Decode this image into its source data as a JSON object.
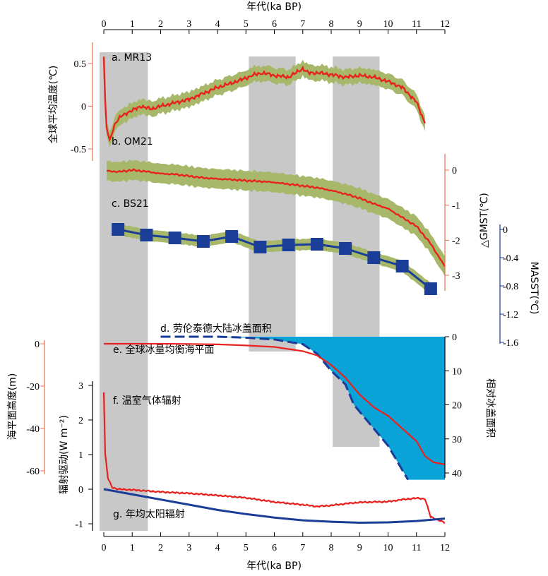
{
  "chart_data": {
    "type": "line",
    "x_axis": {
      "label": "年代(ka BP)",
      "range": [
        0,
        12
      ],
      "ticks": [
        "0",
        "1",
        "2",
        "3",
        "4",
        "5",
        "6",
        "7",
        "8",
        "9",
        "10",
        "11",
        "12"
      ]
    },
    "shading_ka": [
      [
        0,
        1.55
      ],
      [
        5.25,
        6.9
      ],
      [
        8.2,
        9.85
      ]
    ],
    "colors": {
      "red": "#e8221e",
      "blue": "#1a3d98",
      "band": "#a8b86a",
      "gray": "#c8c8c8",
      "ice": "#0aa3d8",
      "axis_orange": "#e8704a"
    },
    "panels": [
      {
        "id": "a",
        "label": "a. MR13",
        "axis": {
          "side": "left",
          "title": "全球平均温度(℃)",
          "ticks": [
            "0.5",
            "0",
            "-0.5"
          ],
          "tick_values": [
            0.5,
            0,
            -0.5
          ],
          "range": [
            -0.65,
            0.62
          ]
        },
        "series_mean": [
          [
            0,
            0.58
          ],
          [
            0.05,
            0.05
          ],
          [
            0.1,
            -0.25
          ],
          [
            0.2,
            -0.4
          ],
          [
            0.3,
            -0.3
          ],
          [
            0.4,
            -0.2
          ],
          [
            0.6,
            -0.12
          ],
          [
            0.8,
            -0.08
          ],
          [
            1,
            -0.05
          ],
          [
            1.3,
            0.0
          ],
          [
            1.5,
            -0.02
          ],
          [
            1.7,
            -0.03
          ],
          [
            2,
            0.0
          ],
          [
            2.5,
            0.04
          ],
          [
            3,
            0.08
          ],
          [
            3.5,
            0.15
          ],
          [
            4,
            0.22
          ],
          [
            4.5,
            0.27
          ],
          [
            5,
            0.33
          ],
          [
            5.3,
            0.37
          ],
          [
            5.6,
            0.39
          ],
          [
            6,
            0.36
          ],
          [
            6.5,
            0.34
          ],
          [
            7,
            0.44
          ],
          [
            7.2,
            0.39
          ],
          [
            7.6,
            0.39
          ],
          [
            8,
            0.37
          ],
          [
            8.5,
            0.34
          ],
          [
            9,
            0.36
          ],
          [
            9.5,
            0.34
          ],
          [
            10,
            0.29
          ],
          [
            10.5,
            0.22
          ],
          [
            11,
            0.05
          ],
          [
            11.3,
            -0.2
          ]
        ],
        "band_halfwidth": 0.09
      },
      {
        "id": "b",
        "label": "b. OM21",
        "axis": {
          "side": "right",
          "title": "△GMST(℃)",
          "ticks": [
            "0",
            "-1",
            "-2",
            "-3"
          ],
          "tick_values": [
            0,
            -1,
            -2,
            -3
          ],
          "range": [
            -3.4,
            0.2
          ]
        },
        "series_mean": [
          [
            0.1,
            -0.02
          ],
          [
            0.5,
            -0.05
          ],
          [
            1,
            0.0
          ],
          [
            1.5,
            -0.04
          ],
          [
            2,
            -0.1
          ],
          [
            2.5,
            -0.12
          ],
          [
            3,
            -0.17
          ],
          [
            3.5,
            -0.22
          ],
          [
            4,
            -0.25
          ],
          [
            4.5,
            -0.27
          ],
          [
            5,
            -0.3
          ],
          [
            5.5,
            -0.32
          ],
          [
            6,
            -0.35
          ],
          [
            6.5,
            -0.4
          ],
          [
            7,
            -0.45
          ],
          [
            7.5,
            -0.5
          ],
          [
            8,
            -0.58
          ],
          [
            8.5,
            -0.68
          ],
          [
            9,
            -0.8
          ],
          [
            9.5,
            -0.96
          ],
          [
            10,
            -1.1
          ],
          [
            10.5,
            -1.35
          ],
          [
            11,
            -1.6
          ],
          [
            11.5,
            -2.1
          ],
          [
            12,
            -2.75
          ]
        ],
        "band_halfwidth": 0.28
      },
      {
        "id": "c",
        "label": "c. BS21",
        "axis": {
          "side": "right",
          "title": "MASST(℃)",
          "ticks": [
            "0",
            "-0.4",
            "-0.8",
            "-1.2",
            "-1.6"
          ],
          "tick_values": [
            0,
            -0.4,
            -0.8,
            -1.2,
            -1.6
          ],
          "range": [
            -1.6,
            0
          ]
        },
        "x": [
          0.5,
          1.5,
          2.5,
          3.5,
          4.5,
          5.5,
          6.5,
          7.5,
          8.5,
          9.5,
          10.5,
          11.5
        ],
        "values": [
          0.0,
          -0.08,
          -0.12,
          -0.17,
          -0.1,
          -0.25,
          -0.22,
          -0.21,
          -0.27,
          -0.4,
          -0.52,
          -0.84
        ],
        "band_halfwidth": 0.08
      },
      {
        "id": "d",
        "label": "d. 劳伦泰德大陆冰盖面积",
        "axis": {
          "side": "right",
          "title": "相对冰盖面积",
          "ticks": [
            "0",
            "10",
            "20",
            "30",
            "40"
          ],
          "tick_values": [
            0,
            10,
            20,
            30,
            40
          ],
          "range": [
            0,
            42
          ]
        },
        "series": [
          [
            2,
            0
          ],
          [
            3,
            0
          ],
          [
            4,
            0
          ],
          [
            5,
            0.3
          ],
          [
            6,
            0.8
          ],
          [
            7,
            2.2
          ],
          [
            7.5,
            5
          ],
          [
            8,
            10
          ],
          [
            8.5,
            14
          ],
          [
            8.8,
            20
          ],
          [
            9.3,
            25
          ],
          [
            10,
            32
          ],
          [
            10.7,
            42
          ]
        ]
      },
      {
        "id": "e",
        "label": "e. 全球冰量均衡海平面",
        "axis": {
          "side": "left",
          "title": "海平面高度(m)",
          "ticks": [
            "0",
            "-20",
            "-40",
            "-60"
          ],
          "tick_values": [
            0,
            -20,
            -40,
            -60
          ],
          "range": [
            -68,
            3
          ]
        },
        "series": [
          [
            0,
            0
          ],
          [
            1,
            0
          ],
          [
            2,
            0
          ],
          [
            3,
            -0.1
          ],
          [
            4,
            -0.3
          ],
          [
            5,
            -0.8
          ],
          [
            6,
            -1.5
          ],
          [
            7,
            -3.5
          ],
          [
            7.5,
            -5.5
          ],
          [
            8,
            -10
          ],
          [
            8.5,
            -16
          ],
          [
            9,
            -24
          ],
          [
            9.5,
            -30
          ],
          [
            10,
            -34
          ],
          [
            10.5,
            -40
          ],
          [
            11,
            -46
          ],
          [
            11.3,
            -53
          ],
          [
            11.6,
            -56
          ],
          [
            12,
            -57
          ]
        ]
      },
      {
        "id": "f",
        "label": "f. 温室气体辐射",
        "axis": {
          "side": "left",
          "title": "辐射驱动(W m⁻²)",
          "ticks": [
            "3",
            "2",
            "1",
            "0",
            "-1"
          ],
          "tick_values": [
            3,
            2,
            1,
            0,
            -1
          ],
          "range": [
            -1.2,
            3.1
          ]
        },
        "series": [
          [
            0,
            2.8
          ],
          [
            0.05,
            1.0
          ],
          [
            0.15,
            0.3
          ],
          [
            0.3,
            0.05
          ],
          [
            0.5,
            0.0
          ],
          [
            1,
            -0.02
          ],
          [
            2,
            -0.08
          ],
          [
            3,
            -0.12
          ],
          [
            4,
            -0.18
          ],
          [
            5,
            -0.25
          ],
          [
            6,
            -0.37
          ],
          [
            7,
            -0.45
          ],
          [
            7.5,
            -0.5
          ],
          [
            8,
            -0.47
          ],
          [
            8.5,
            -0.42
          ],
          [
            9,
            -0.38
          ],
          [
            10,
            -0.36
          ],
          [
            10.5,
            -0.3
          ],
          [
            11,
            -0.26
          ],
          [
            11.3,
            -0.28
          ],
          [
            11.5,
            -0.8
          ],
          [
            12,
            -0.97
          ]
        ]
      },
      {
        "id": "g",
        "label": "g. 年均太阳辐射",
        "series": [
          [
            0,
            0.0
          ],
          [
            1,
            -0.15
          ],
          [
            2,
            -0.3
          ],
          [
            3,
            -0.45
          ],
          [
            4,
            -0.6
          ],
          [
            5,
            -0.72
          ],
          [
            6,
            -0.82
          ],
          [
            7,
            -0.9
          ],
          [
            8,
            -0.94
          ],
          [
            9,
            -0.97
          ],
          [
            10,
            -0.96
          ],
          [
            11,
            -0.92
          ],
          [
            12,
            -0.85
          ]
        ]
      }
    ]
  }
}
